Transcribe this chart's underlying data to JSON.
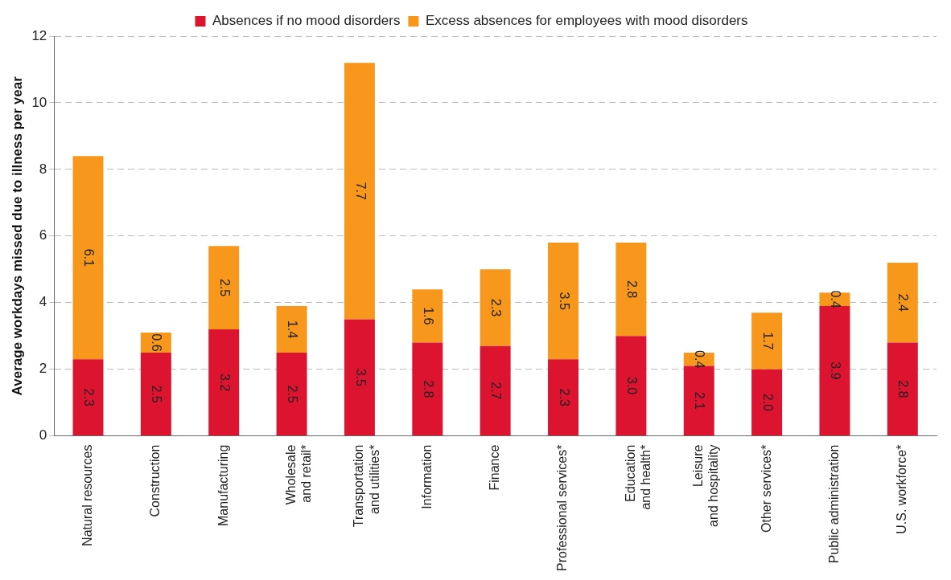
{
  "chart_data": {
    "type": "bar",
    "stacked": true,
    "ylabel": "Average workdays missed due to illness per year",
    "categories": [
      "Natural resources",
      "Construction",
      "Manufacturing",
      "Wholesale\nand retail*",
      "Transportation\nand utilities*",
      "Information",
      "Finance",
      "Professional services*",
      "Education\nand health*",
      "Leisure\nand hospitality",
      "Other services*",
      "Public administration",
      "U.S. workforce*"
    ],
    "series": [
      {
        "name": "Absences if no mood disorders",
        "color": "#dc1430",
        "values": [
          2.3,
          2.5,
          3.2,
          2.5,
          3.5,
          2.8,
          2.7,
          2.3,
          3.0,
          2.1,
          2.0,
          3.9,
          2.8
        ],
        "value_labels": [
          "2.3",
          "2.5",
          "3.2",
          "2.5",
          "3.5",
          "2.8",
          "2.7",
          "2.3",
          "3.0",
          "2.1",
          "2.0",
          "3.9",
          "2.8"
        ]
      },
      {
        "name": "Excess absences for employees with mood disorders",
        "color": "#f7981d",
        "values": [
          6.1,
          0.6,
          2.5,
          1.4,
          7.7,
          1.6,
          2.3,
          3.5,
          2.8,
          0.4,
          1.7,
          0.4,
          2.4
        ],
        "value_labels": [
          "6.1",
          "0.6",
          "2.5",
          "1.4",
          "7.7",
          "1.6",
          "2.3",
          "3.5",
          "2.8",
          "0.4",
          "1.7",
          "0.4",
          "2.4"
        ]
      }
    ],
    "ylim": [
      0,
      12
    ],
    "yticks": [
      0,
      2,
      4,
      6,
      8,
      10,
      12
    ],
    "grid": "y",
    "legend": "top"
  }
}
